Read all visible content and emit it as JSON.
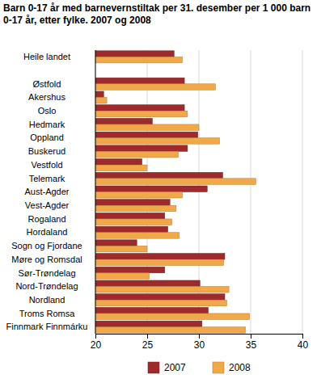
{
  "chart_data": {
    "type": "bar",
    "orientation": "horizontal",
    "title": "Barn 0-17 år med barnevernstiltak per 31. desember per 1 000 barn 0-17 år, etter fylke. 2007 og 2008",
    "categories": [
      "Heile landet",
      "Østfold",
      "Akershus",
      "Oslo",
      "Hedmark",
      "Oppland",
      "Buskerud",
      "Vestfold",
      "Telemark",
      "Aust-Agder",
      "Vest-Agder",
      "Rogaland",
      "Hordaland",
      "Sogn og Fjordane",
      "Møre og Romsdal",
      "Sør-Trøndelag",
      "Nord-Trøndelag",
      "Nordland",
      "Troms Romsa",
      "Finnmark Finnmárku"
    ],
    "series": [
      {
        "name": "2007",
        "color": "#9e2a2b",
        "values": [
          27.6,
          28.6,
          20.8,
          28.6,
          25.5,
          29.9,
          28.9,
          24.5,
          32.3,
          30.8,
          27.2,
          26.7,
          27.0,
          24.0,
          32.5,
          26.7,
          30.1,
          32.5,
          30.9,
          30.3
        ]
      },
      {
        "name": "2008",
        "color": "#f0a848",
        "values": [
          28.4,
          31.6,
          21.1,
          28.9,
          30.0,
          32.0,
          28.0,
          25.0,
          35.5,
          28.4,
          27.8,
          27.4,
          28.1,
          25.0,
          32.4,
          25.2,
          32.9,
          32.7,
          34.9,
          34.5
        ]
      }
    ],
    "xlim": [
      20,
      40
    ],
    "xticks": [
      20,
      25,
      30,
      35,
      40
    ],
    "grid": true,
    "legend": "bottom"
  }
}
